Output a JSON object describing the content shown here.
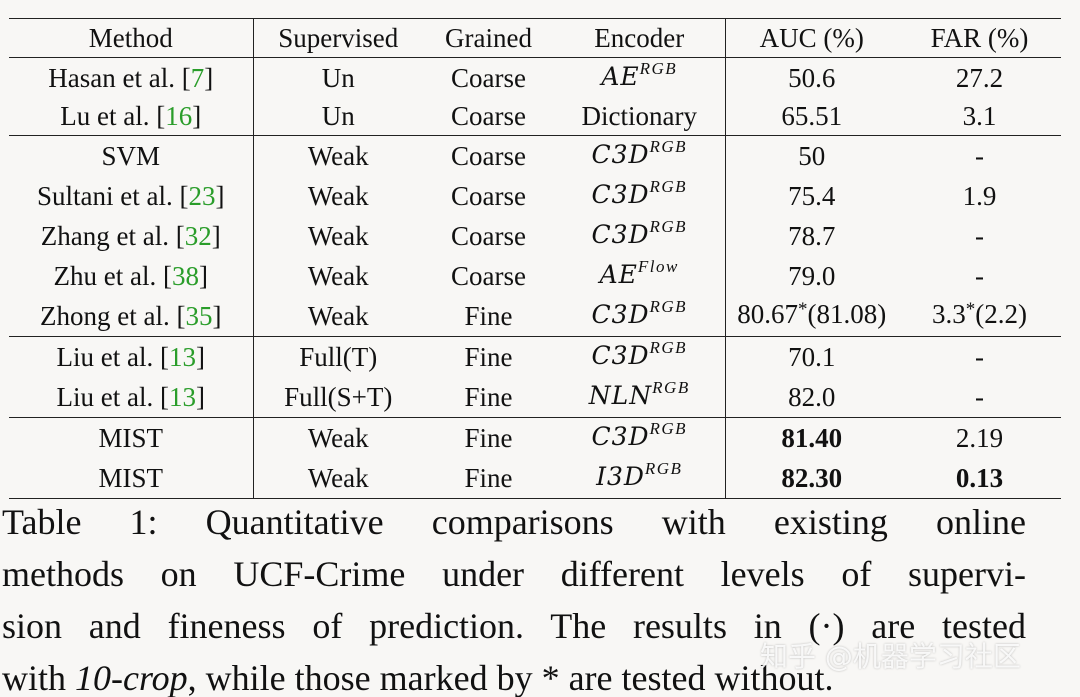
{
  "table": {
    "headers": [
      "Method",
      "Supervised",
      "Grained",
      "Encoder",
      "AUC (%)",
      "FAR (%)"
    ],
    "groups": [
      [
        {
          "method": "Hasan et al. ",
          "ref": "7",
          "supervised": "Un",
          "grained": "Coarse",
          "encoder_base": "AE",
          "encoder_sup": "RGB",
          "encoder_math": true,
          "auc": "50.6",
          "auc_bold": false,
          "far": "27.2",
          "far_bold": false
        },
        {
          "method": "Lu et al. ",
          "ref": "16",
          "supervised": "Un",
          "grained": "Coarse",
          "encoder_base": "Dictionary",
          "encoder_sup": "",
          "encoder_math": false,
          "auc": "65.51",
          "auc_bold": false,
          "far": "3.1",
          "far_bold": false
        }
      ],
      [
        {
          "method": "SVM",
          "ref": "",
          "supervised": "Weak",
          "grained": "Coarse",
          "encoder_base": "C3D",
          "encoder_sup": "RGB",
          "encoder_math": true,
          "auc": "50",
          "auc_bold": false,
          "far": "-",
          "far_bold": false
        },
        {
          "method": "Sultani et al. ",
          "ref": "23",
          "supervised": "Weak",
          "grained": "Coarse",
          "encoder_base": "C3D",
          "encoder_sup": "RGB",
          "encoder_math": true,
          "auc": "75.4",
          "auc_bold": false,
          "far": "1.9",
          "far_bold": false
        },
        {
          "method": "Zhang et al. ",
          "ref": "32",
          "supervised": "Weak",
          "grained": "Coarse",
          "encoder_base": "C3D",
          "encoder_sup": "RGB",
          "encoder_math": true,
          "auc": "78.7",
          "auc_bold": false,
          "far": "-",
          "far_bold": false
        },
        {
          "method": "Zhu et al. ",
          "ref": "38",
          "supervised": "Weak",
          "grained": "Coarse",
          "encoder_base": "AE",
          "encoder_sup": "Flow",
          "encoder_math": true,
          "auc": "79.0",
          "auc_bold": false,
          "far": "-",
          "far_bold": false
        },
        {
          "method": "Zhong et al. ",
          "ref": "35",
          "supervised": "Weak",
          "grained": "Fine",
          "encoder_base": "C3D",
          "encoder_sup": "RGB",
          "encoder_math": true,
          "auc": "80.67*(81.08)",
          "auc_bold": false,
          "far": "3.3*(2.2)",
          "far_bold": false
        }
      ],
      [
        {
          "method": "Liu et al. ",
          "ref": "13",
          "supervised": "Full(T)",
          "grained": "Fine",
          "encoder_base": "C3D",
          "encoder_sup": "RGB",
          "encoder_math": true,
          "auc": "70.1",
          "auc_bold": false,
          "far": "-",
          "far_bold": false
        },
        {
          "method": "Liu et al. ",
          "ref": "13",
          "supervised": "Full(S+T)",
          "grained": "Fine",
          "encoder_base": "NLN",
          "encoder_sup": "RGB",
          "encoder_math": true,
          "auc": "82.0",
          "auc_bold": false,
          "far": "-",
          "far_bold": false
        }
      ],
      [
        {
          "method": "MIST",
          "ref": "",
          "supervised": "Weak",
          "grained": "Fine",
          "encoder_base": "C3D",
          "encoder_sup": "RGB",
          "encoder_math": true,
          "auc": "81.40",
          "auc_bold": true,
          "far": "2.19",
          "far_bold": false
        },
        {
          "method": "MIST",
          "ref": "",
          "supervised": "Weak",
          "grained": "Fine",
          "encoder_base": "I3D",
          "encoder_sup": "RGB",
          "encoder_math": true,
          "auc": "82.30",
          "auc_bold": true,
          "far": "0.13",
          "far_bold": true
        }
      ]
    ]
  },
  "caption": {
    "lines": [
      "Table 1:  Quantitative comparisons with existing online",
      "methods on UCF-Crime under different levels of supervi-",
      "sion and fineness of prediction. The results in (·) are tested",
      "with ",
      "10-crop",
      ", while those marked by * are tested without."
    ]
  },
  "watermark": "知乎 @机器学习社区"
}
